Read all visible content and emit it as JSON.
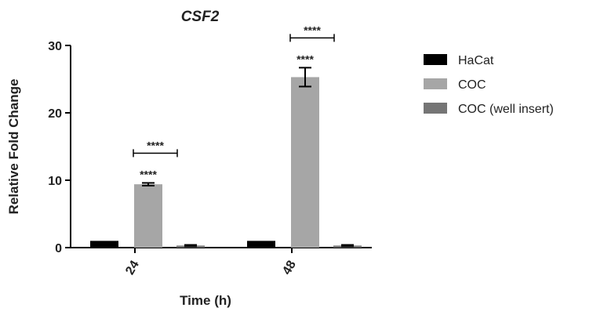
{
  "chart_data": {
    "type": "bar",
    "title": "CSF2",
    "xlabel": "Time (h)",
    "ylabel": "Relative Fold Change",
    "categories": [
      "24",
      "48"
    ],
    "ylim": [
      0,
      30
    ],
    "yticks": [
      "0",
      "10",
      "20",
      "30"
    ],
    "series": [
      {
        "name": "HaCat",
        "color": "#000000",
        "values": [
          1.0,
          1.0
        ],
        "errors": [
          0,
          0
        ]
      },
      {
        "name": "COC",
        "color": "#a6a6a6",
        "values": [
          9.4,
          25.3
        ],
        "errors": [
          0.2,
          1.4
        ]
      },
      {
        "name": "COC (well insert)",
        "color": "#757575",
        "values": [
          0.3,
          0.3
        ],
        "errors": [
          0.1,
          0.1
        ]
      }
    ],
    "annotations": [
      {
        "category": "24",
        "series": "COC",
        "text": "****",
        "type": "significance"
      },
      {
        "category": "24",
        "series": "COC",
        "text": "****",
        "type": "bracket"
      },
      {
        "category": "48",
        "series": "COC",
        "text": "****",
        "type": "significance"
      },
      {
        "category": "48",
        "series": "COC",
        "text": "****",
        "type": "bracket"
      }
    ],
    "legend_position": "right",
    "grid": false
  }
}
